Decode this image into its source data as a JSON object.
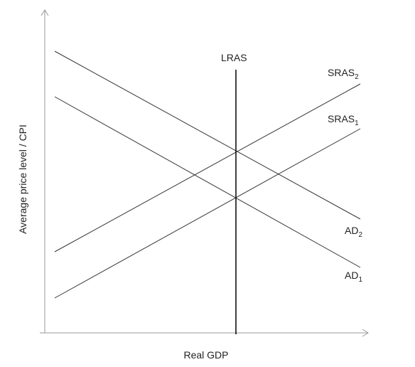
{
  "axes": {
    "x_label": "Real GDP",
    "y_label": "Average price level / CPI"
  },
  "curves": {
    "lras": {
      "label": "LRAS"
    },
    "sras2": {
      "label": "SRAS",
      "sub": "2"
    },
    "sras1": {
      "label": "SRAS",
      "sub": "1"
    },
    "ad2": {
      "label": "AD",
      "sub": "2"
    },
    "ad1": {
      "label": "AD",
      "sub": "1"
    }
  }
}
